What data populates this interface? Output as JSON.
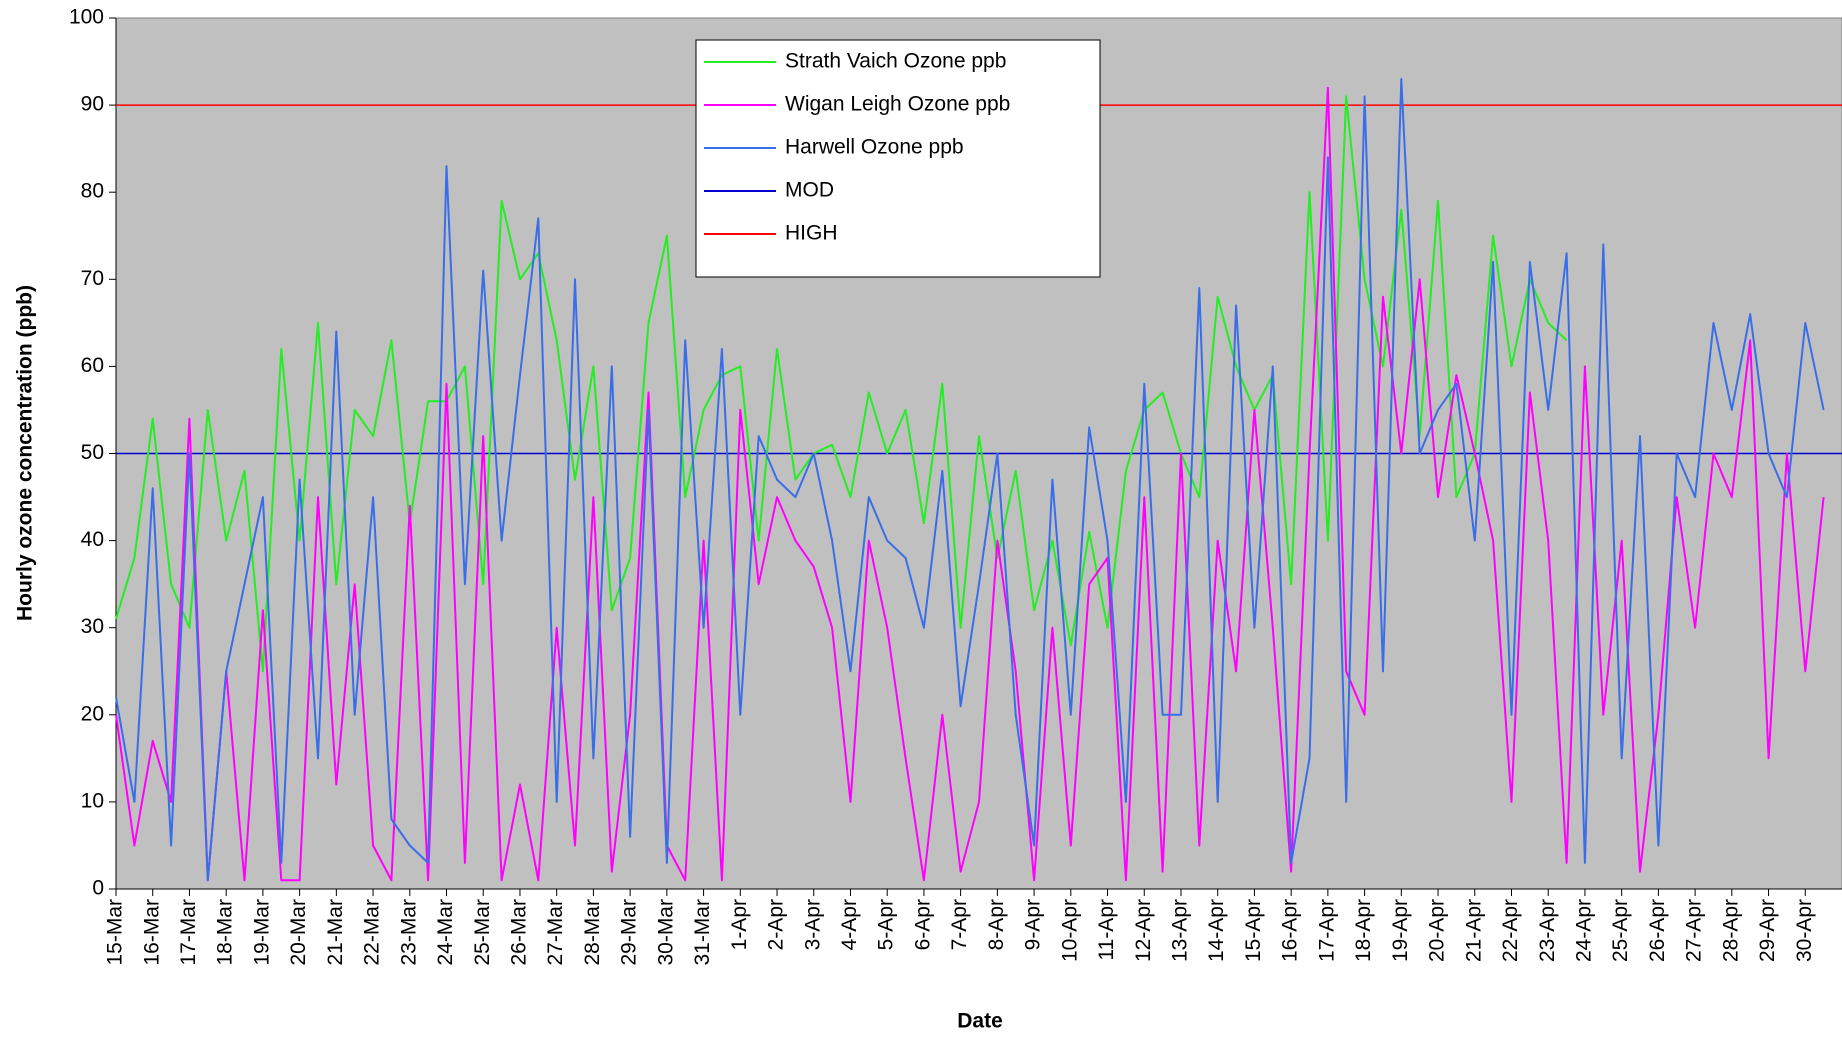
{
  "chart_data": {
    "type": "line",
    "x_label": "Date",
    "y_label": "Hourly ozone concentration (ppb)",
    "categories": [
      "15-Mar",
      null,
      "16-Mar",
      null,
      "17-Mar",
      null,
      "18-Mar",
      null,
      "19-Mar",
      null,
      "20-Mar",
      null,
      "21-Mar",
      null,
      "22-Mar",
      null,
      "23-Mar",
      null,
      "24-Mar",
      null,
      "25-Mar",
      null,
      "26-Mar",
      null,
      "27-Mar",
      null,
      "28-Mar",
      null,
      "29-Mar",
      null,
      "30-Mar",
      null,
      "31-Mar",
      null,
      "1-Apr",
      null,
      "2-Apr",
      null,
      "3-Apr",
      null,
      "4-Apr",
      null,
      "5-Apr",
      null,
      "6-Apr",
      null,
      "7-Apr",
      null,
      "8-Apr",
      null,
      "9-Apr",
      null,
      "10-Apr",
      null,
      "11-Apr",
      null,
      "12-Apr",
      null,
      "13-Apr",
      null,
      "14-Apr",
      null,
      "15-Apr",
      null,
      "16-Apr",
      null,
      "17-Apr",
      null,
      "18-Apr",
      null,
      "19-Apr",
      null,
      "20-Apr",
      null,
      "21-Apr",
      null,
      "22-Apr",
      null,
      "23-Apr",
      null,
      "24-Apr",
      null,
      "25-Apr",
      null,
      "26-Apr",
      null,
      "27-Apr",
      null,
      "28-Apr",
      null,
      "29-Apr",
      null,
      "30-Apr",
      null
    ],
    "series": [
      {
        "name": "Strath Vaich Ozone ppb",
        "color": "#22ee22",
        "values": [
          31,
          38,
          54,
          35,
          30,
          55,
          40,
          48,
          25,
          62,
          40,
          65,
          35,
          55,
          52,
          63,
          42,
          56,
          56,
          60,
          35,
          79,
          70,
          73,
          63,
          47,
          60,
          32,
          38,
          65,
          75,
          45,
          55,
          59,
          60,
          40,
          62,
          47,
          50,
          51,
          45,
          57,
          50,
          55,
          42,
          58,
          30,
          52,
          38,
          48,
          32,
          40,
          28,
          41,
          30,
          48,
          55,
          57,
          50,
          45,
          68,
          60,
          55,
          59,
          35,
          80,
          40,
          91,
          70,
          60,
          78,
          52,
          79,
          45,
          50,
          75,
          60,
          70,
          65,
          63,
          null,
          null,
          null,
          null,
          null,
          null,
          null,
          null,
          null,
          null,
          null,
          null,
          null,
          null
        ]
      },
      {
        "name": "Wigan Leigh Ozone ppb",
        "color": "#ff00ff",
        "values": [
          20,
          5,
          17,
          10,
          54,
          1,
          25,
          1,
          32,
          1,
          1,
          45,
          12,
          35,
          5,
          1,
          44,
          1,
          58,
          3,
          52,
          1,
          12,
          1,
          30,
          5,
          45,
          2,
          20,
          57,
          5,
          1,
          40,
          1,
          55,
          35,
          45,
          40,
          37,
          30,
          10,
          40,
          30,
          15,
          1,
          20,
          2,
          10,
          40,
          25,
          1,
          30,
          5,
          35,
          38,
          1,
          45,
          2,
          50,
          5,
          40,
          25,
          55,
          30,
          2,
          50,
          92,
          25,
          20,
          68,
          50,
          70,
          45,
          59,
          50,
          40,
          10,
          57,
          40,
          3,
          60,
          20,
          40,
          2,
          20,
          45,
          30,
          50,
          45,
          63,
          15,
          50,
          25,
          45
        ]
      },
      {
        "name": "Harwell Ozone ppb",
        "color": "#3a6ee8",
        "values": [
          22,
          10,
          46,
          5,
          50,
          1,
          25,
          35,
          45,
          3,
          47,
          15,
          64,
          20,
          45,
          8,
          5,
          3,
          83,
          35,
          71,
          40,
          59,
          77,
          10,
          70,
          15,
          60,
          6,
          55,
          3,
          63,
          30,
          62,
          20,
          52,
          47,
          45,
          50,
          40,
          25,
          45,
          40,
          38,
          30,
          48,
          21,
          35,
          50,
          20,
          5,
          47,
          20,
          53,
          40,
          10,
          58,
          20,
          20,
          69,
          10,
          67,
          30,
          60,
          3,
          15,
          84,
          10,
          91,
          25,
          93,
          50,
          55,
          58,
          40,
          72,
          20,
          72,
          55,
          73,
          3,
          74,
          15,
          52,
          5,
          50,
          45,
          65,
          55,
          66,
          50,
          45,
          65,
          55
        ]
      }
    ],
    "reference_lines": [
      {
        "name": "MOD",
        "value": 50,
        "color": "#0000cc"
      },
      {
        "name": "HIGH",
        "value": 90,
        "color": "#ff0000"
      }
    ],
    "ylim": [
      0,
      100
    ],
    "yticks": [
      0,
      10,
      20,
      30,
      40,
      50,
      60,
      70,
      80,
      90,
      100
    ],
    "legend": "top-center",
    "background": "#c0c0c0"
  }
}
